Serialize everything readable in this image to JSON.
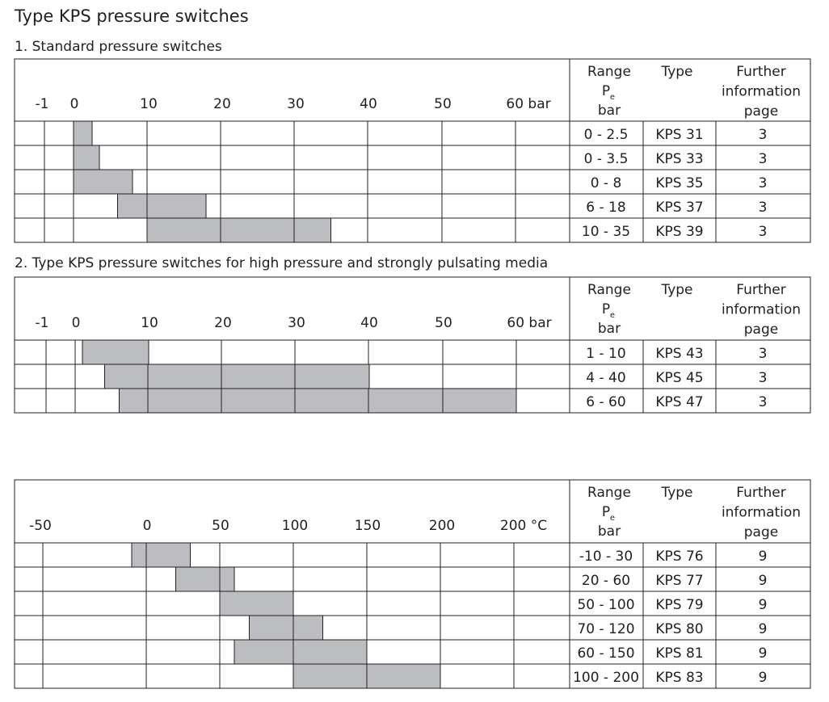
{
  "title": "Type KPS pressure switches",
  "tables": [
    {
      "heading": "1. Standard pressure switches",
      "axis_labels": [
        "-1",
        "0",
        "10",
        "20",
        "30",
        "40",
        "50",
        "60 bar"
      ],
      "header": {
        "range": "Range",
        "range_symbol": "P",
        "range_subscript": "e",
        "range_unit": "bar",
        "type": "Type",
        "further_lines": [
          "Further",
          "information",
          "page"
        ]
      },
      "rows": [
        {
          "range": "0 - 2.5",
          "type": "KPS 31",
          "page": "3",
          "min": 0,
          "max": 2.5
        },
        {
          "range": "0 - 3.5",
          "type": "KPS 33",
          "page": "3",
          "min": 0,
          "max": 3.5
        },
        {
          "range": "0 - 8",
          "type": "KPS 35",
          "page": "3",
          "min": 0,
          "max": 8
        },
        {
          "range": "6 - 18",
          "type": "KPS 37",
          "page": "3",
          "min": 6,
          "max": 18
        },
        {
          "range": "10 - 35",
          "type": "KPS 39",
          "page": "3",
          "min": 10,
          "max": 35
        }
      ]
    },
    {
      "heading": "2. Type KPS pressure switches for high pressure and strongly pulsating media",
      "axis_labels": [
        "-1",
        "0",
        "10",
        "20",
        "30",
        "40",
        "50",
        "60 bar"
      ],
      "header": {
        "range": "Range",
        "range_symbol": "P",
        "range_subscript": "e",
        "range_unit": "bar",
        "type": "Type",
        "further_lines": [
          "Further",
          "information",
          "page"
        ]
      },
      "rows": [
        {
          "range": "1 - 10",
          "type": "KPS 43",
          "page": "3",
          "min": 1,
          "max": 10
        },
        {
          "range": "4 - 40",
          "type": "KPS 45",
          "page": "3",
          "min": 4,
          "max": 40
        },
        {
          "range": "6 - 60",
          "type": "KPS 47",
          "page": "3",
          "min": 6,
          "max": 60
        }
      ]
    },
    {
      "heading": "",
      "axis_labels": [
        "-50",
        "0",
        "50",
        "100",
        "150",
        "200",
        "200 °C"
      ],
      "header": {
        "range": "Range",
        "range_symbol": "P",
        "range_subscript": "e",
        "range_unit": "bar",
        "type": "Type",
        "further_lines": [
          "Further",
          "information",
          "page"
        ]
      },
      "rows": [
        {
          "range": "-10 - 30",
          "type": "KPS 76",
          "page": "9",
          "min": -10,
          "max": 30
        },
        {
          "range": "20 - 60",
          "type": "KPS 77",
          "page": "9",
          "min": 20,
          "max": 60
        },
        {
          "range": "50 - 100",
          "type": "KPS 79",
          "page": "9",
          "min": 50,
          "max": 100
        },
        {
          "range": "70 - 120",
          "type": "KPS 80",
          "page": "9",
          "min": 70,
          "max": 120
        },
        {
          "range": "60 - 150",
          "type": "KPS 81",
          "page": "9",
          "min": 60,
          "max": 150
        },
        {
          "range": "100 - 200",
          "type": "KPS 83",
          "page": "9",
          "min": 100,
          "max": 200
        }
      ]
    }
  ]
}
